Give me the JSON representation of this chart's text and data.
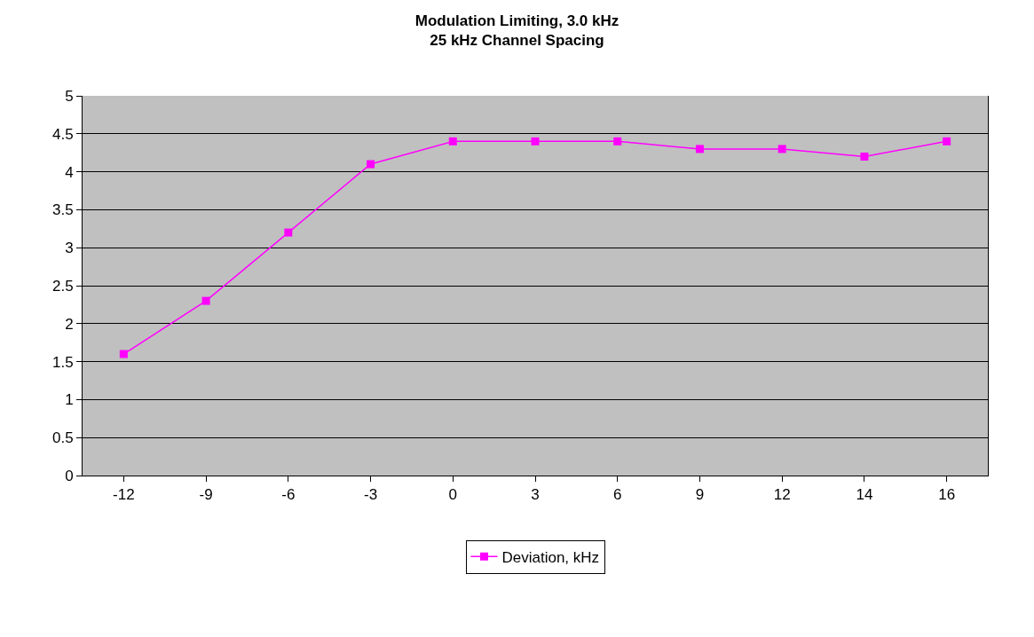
{
  "chart_data": {
    "type": "line",
    "title": "Modulation Limiting, 3.0 kHz\n25 kHz Channel Spacing",
    "categories": [
      "-12",
      "-9",
      "-6",
      "-3",
      "0",
      "3",
      "6",
      "9",
      "12",
      "14",
      "16"
    ],
    "series": [
      {
        "name": "Deviation, kHz",
        "color": "#ff00ff",
        "values": [
          1.6,
          2.3,
          3.2,
          4.1,
          4.4,
          4.4,
          4.4,
          4.3,
          4.3,
          4.2,
          4.4
        ]
      }
    ],
    "ylim": [
      0,
      5
    ],
    "yticks": [
      0,
      0.5,
      1,
      1.5,
      2,
      2.5,
      3,
      3.5,
      4,
      4.5,
      5
    ],
    "grid": "y",
    "legend": "bottom",
    "marker": "square",
    "line_style": "solid"
  }
}
